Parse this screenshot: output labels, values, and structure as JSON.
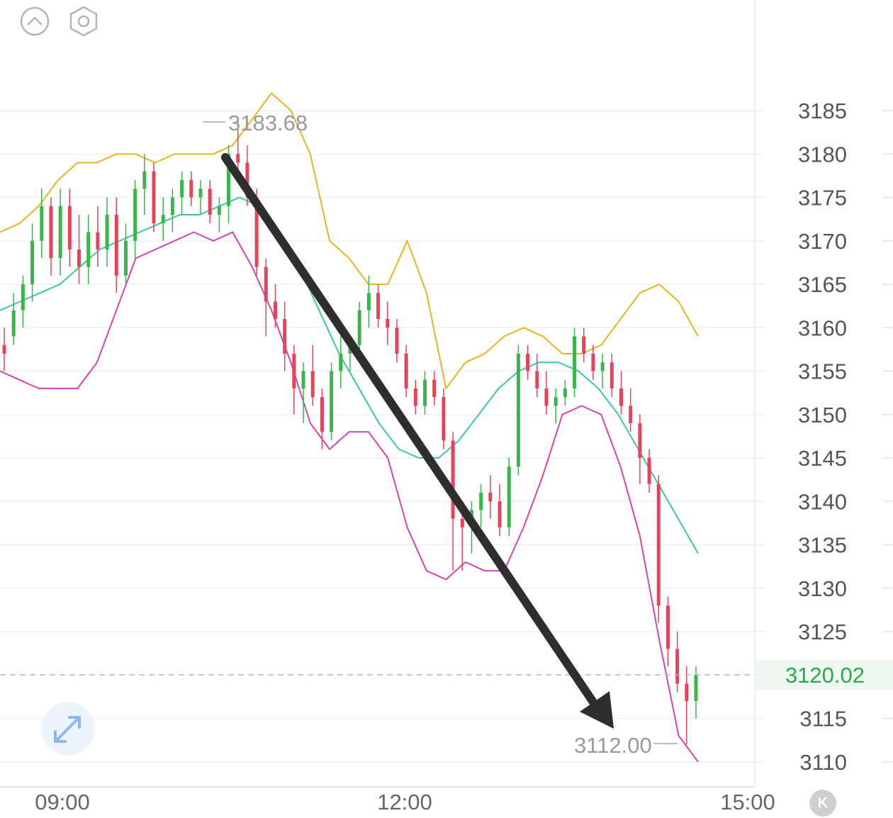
{
  "toolbar": {
    "collapse_icon": "chevron-up-circle-icon",
    "settings_icon": "hexagon-settings-icon",
    "expand_icon": "expand-arrows-icon",
    "k_button_label": "K"
  },
  "colors": {
    "up": "#39b54a",
    "down": "#e8425a",
    "upper_band": "#e8b423",
    "middle_band": "#3cc6a8",
    "lower_band": "#d642b8",
    "arrow": "#2e2e2e",
    "current_price": "#2aa84a"
  },
  "chart_data": {
    "type": "candlestick",
    "x_ticks": [
      "09:00",
      "12:00",
      "15:00"
    ],
    "y_ticks": [
      3110,
      3115,
      3125,
      3130,
      3135,
      3140,
      3145,
      3150,
      3155,
      3160,
      3165,
      3170,
      3175,
      3180,
      3185
    ],
    "ylim": [
      3108,
      3189
    ],
    "current_price": "3120.02",
    "high_marker": "3183.68",
    "low_marker": "3112.00",
    "grid": true,
    "candles": [
      [
        3158,
        3160,
        3155,
        3157
      ],
      [
        3159,
        3164,
        3158,
        3162
      ],
      [
        3162,
        3166,
        3160,
        3165
      ],
      [
        3165,
        3172,
        3163,
        3170
      ],
      [
        3170,
        3176,
        3168,
        3174
      ],
      [
        3174,
        3175,
        3166,
        3168
      ],
      [
        3168,
        3176,
        3166,
        3174
      ],
      [
        3174,
        3176,
        3167,
        3169
      ],
      [
        3169,
        3173,
        3165,
        3167
      ],
      [
        3167,
        3173,
        3165,
        3171
      ],
      [
        3171,
        3174,
        3167,
        3169
      ],
      [
        3169,
        3175,
        3167,
        3173
      ],
      [
        3173,
        3175,
        3164,
        3166
      ],
      [
        3166,
        3172,
        3165,
        3170
      ],
      [
        3170,
        3177,
        3168,
        3176
      ],
      [
        3176,
        3180,
        3173,
        3178
      ],
      [
        3178,
        3179,
        3171,
        3172
      ],
      [
        3172,
        3175,
        3170,
        3173
      ],
      [
        3173,
        3176,
        3171,
        3175
      ],
      [
        3175,
        3178,
        3173,
        3177
      ],
      [
        3177,
        3178,
        3174,
        3175
      ],
      [
        3175,
        3177,
        3173,
        3176
      ],
      [
        3176,
        3177,
        3172,
        3173
      ],
      [
        3173,
        3175,
        3171,
        3174
      ],
      [
        3174,
        3181,
        3172,
        3180
      ],
      [
        3180,
        3184,
        3177,
        3179
      ],
      [
        3179,
        3181,
        3174,
        3175
      ],
      [
        3175,
        3176,
        3166,
        3167
      ],
      [
        3167,
        3168,
        3159,
        3163
      ],
      [
        3163,
        3165,
        3160,
        3161
      ],
      [
        3161,
        3163,
        3155,
        3157
      ],
      [
        3157,
        3158,
        3150,
        3153
      ],
      [
        3153,
        3156,
        3149,
        3155
      ],
      [
        3155,
        3158,
        3151,
        3152
      ],
      [
        3152,
        3153,
        3146,
        3148
      ],
      [
        3148,
        3156,
        3147,
        3155
      ],
      [
        3155,
        3159,
        3153,
        3157
      ],
      [
        3157,
        3159,
        3155,
        3158
      ],
      [
        3158,
        3163,
        3157,
        3162
      ],
      [
        3162,
        3166,
        3160,
        3164
      ],
      [
        3164,
        3165,
        3160,
        3161
      ],
      [
        3161,
        3163,
        3158,
        3160
      ],
      [
        3160,
        3161,
        3156,
        3157
      ],
      [
        3157,
        3158,
        3152,
        3153
      ],
      [
        3153,
        3154,
        3150,
        3151
      ],
      [
        3151,
        3155,
        3150,
        3154
      ],
      [
        3154,
        3155,
        3151,
        3152
      ],
      [
        3152,
        3153,
        3146,
        3147
      ],
      [
        3147,
        3148,
        3132,
        3138
      ],
      [
        3138,
        3139,
        3132,
        3137
      ],
      [
        3137,
        3140,
        3134,
        3139
      ],
      [
        3139,
        3142,
        3137,
        3141
      ],
      [
        3141,
        3143,
        3138,
        3140
      ],
      [
        3140,
        3142,
        3136,
        3137
      ],
      [
        3137,
        3145,
        3136,
        3144
      ],
      [
        3144,
        3158,
        3143,
        3157
      ],
      [
        3157,
        3158,
        3154,
        3155
      ],
      [
        3155,
        3157,
        3152,
        3153
      ],
      [
        3153,
        3155,
        3150,
        3151
      ],
      [
        3151,
        3153,
        3149,
        3152
      ],
      [
        3152,
        3154,
        3151,
        3153
      ],
      [
        3153,
        3160,
        3152,
        3159
      ],
      [
        3159,
        3160,
        3156,
        3157
      ],
      [
        3157,
        3158,
        3154,
        3155
      ],
      [
        3155,
        3157,
        3153,
        3156
      ],
      [
        3156,
        3157,
        3152,
        3153
      ],
      [
        3153,
        3155,
        3150,
        3151
      ],
      [
        3151,
        3153,
        3148,
        3149
      ],
      [
        3149,
        3150,
        3142,
        3145
      ],
      [
        3145,
        3146,
        3141,
        3142
      ],
      [
        3142,
        3143,
        3126,
        3128
      ],
      [
        3128,
        3129,
        3121,
        3123
      ],
      [
        3123,
        3125,
        3118,
        3119
      ],
      [
        3119,
        3121,
        3112,
        3117
      ],
      [
        3117,
        3121,
        3115,
        3120.02
      ]
    ],
    "upper_band": [
      3171,
      3172,
      3174,
      3177,
      3179,
      3179,
      3180,
      3180,
      3179,
      3180,
      3180,
      3180,
      3181,
      3184,
      3187,
      3185,
      3180,
      3170,
      3168,
      3165,
      3165,
      3170,
      3164,
      3153,
      3156,
      3157,
      3159,
      3160,
      3159,
      3157,
      3157,
      3158,
      3161,
      3164,
      3165,
      3163,
      3159
    ],
    "middle_band": [
      3162,
      3163,
      3164,
      3165,
      3167,
      3169,
      3170,
      3171,
      3172,
      3173,
      3173,
      3174,
      3175,
      3174,
      3171,
      3167,
      3162,
      3157,
      3153,
      3149,
      3146,
      3145,
      3145,
      3147,
      3150,
      3153,
      3155,
      3156,
      3156,
      3155,
      3153,
      3150,
      3146,
      3142,
      3138,
      3134
    ],
    "lower_band": [
      3155,
      3154,
      3153,
      3153,
      3153,
      3156,
      3162,
      3168,
      3169,
      3170,
      3171,
      3170,
      3171,
      3167,
      3162,
      3156,
      3149,
      3146,
      3148,
      3148,
      3145,
      3137,
      3132,
      3131,
      3133,
      3132,
      3132,
      3137,
      3143,
      3150,
      3151,
      3150,
      3144,
      3136,
      3124,
      3113,
      3110
    ]
  }
}
